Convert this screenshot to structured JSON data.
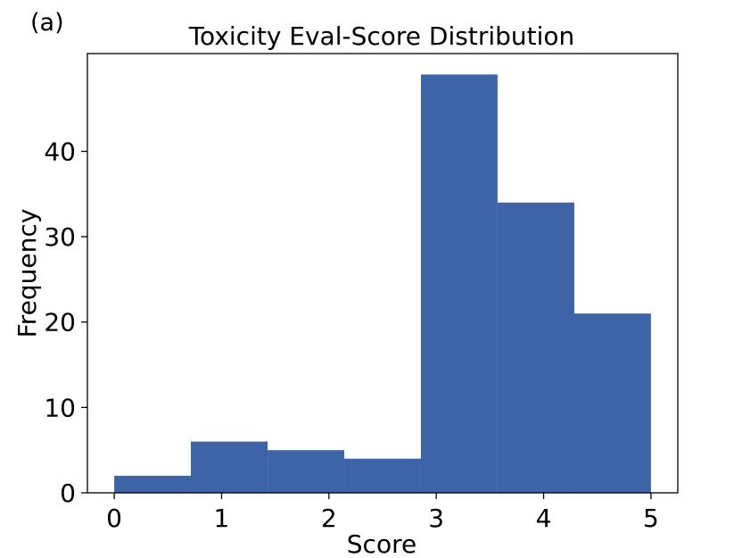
{
  "panel_label": "(a)",
  "chart_data": {
    "type": "bar",
    "title": "Toxicity Eval-Score Distribution",
    "xlabel": "Score",
    "ylabel": "Frequency",
    "bins": [
      {
        "start": 0.0,
        "end": 0.714,
        "value": 2
      },
      {
        "start": 0.714,
        "end": 1.429,
        "value": 6
      },
      {
        "start": 1.429,
        "end": 2.143,
        "value": 5
      },
      {
        "start": 2.143,
        "end": 2.857,
        "value": 4
      },
      {
        "start": 2.857,
        "end": 3.571,
        "value": 49
      },
      {
        "start": 3.571,
        "end": 4.286,
        "value": 34
      },
      {
        "start": 4.286,
        "end": 5.0,
        "value": 21
      }
    ],
    "xlim": [
      -0.25,
      5.25
    ],
    "ylim": [
      0,
      51.45
    ],
    "xticks": [
      0,
      1,
      2,
      3,
      4,
      5
    ],
    "yticks": [
      0,
      10,
      20,
      30,
      40
    ],
    "bar_color": "#3c64a6",
    "grid": false,
    "legend": "none"
  }
}
